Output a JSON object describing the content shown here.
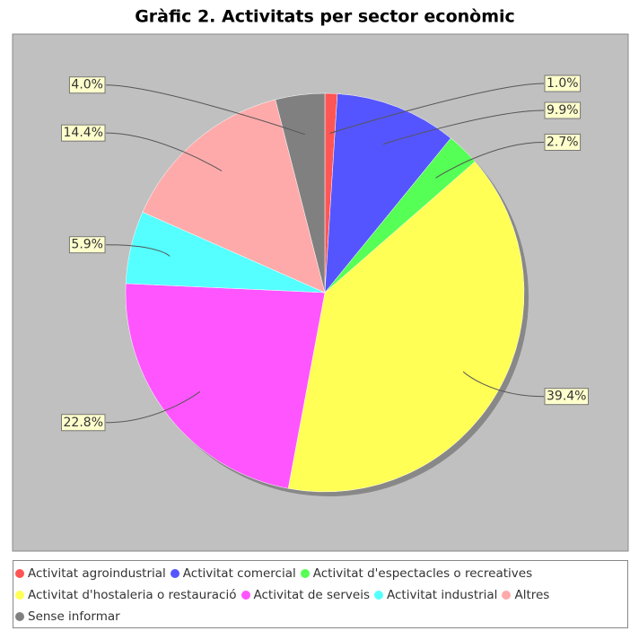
{
  "chart_data": {
    "type": "pie",
    "title": "Gràfic 2. Activitats per sector econòmic",
    "categories": [
      "Activitat agroindustrial",
      "Activitat comercial",
      "Activitat d'espectacles o recreatives",
      "Activitat d'hostaleria o restauració",
      "Activitat de serveis",
      "Activitat industrial",
      "Altres",
      "Sense informar"
    ],
    "values": [
      1.0,
      9.9,
      2.7,
      39.4,
      22.8,
      5.9,
      14.4,
      4.0
    ],
    "value_labels": [
      "1.0%",
      "9.9%",
      "2.7%",
      "39.4%",
      "22.8%",
      "5.9%",
      "14.4%",
      "4.0%"
    ],
    "colors": [
      "#ff5555",
      "#5555ff",
      "#55ff55",
      "#ffff55",
      "#ff55ff",
      "#55ffff",
      "#ffaaaa",
      "#808080"
    ],
    "legend": "bottom"
  }
}
